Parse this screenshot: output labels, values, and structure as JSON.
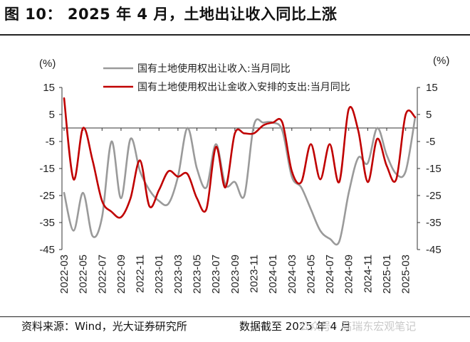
{
  "header": {
    "title": "图 10： 2025 年 4 月，土地出让收入同比上涨"
  },
  "footer": {
    "source": "资料来源：Wind，光大证券研究所",
    "cutoff": "数据截至 2025 年 4 月",
    "watermark": "公众号 · 高瑞东宏观笔记"
  },
  "chart_data": {
    "type": "line",
    "unit_left": "(%)",
    "unit_right": "(%)",
    "ylim": [
      -45,
      15
    ],
    "yticks": [
      15,
      5,
      -5,
      -15,
      -25,
      -35,
      -45
    ],
    "grid": false,
    "legend_position": "top",
    "x": [
      "2022-03",
      "2022-04",
      "2022-05",
      "2022-06",
      "2022-07",
      "2022-08",
      "2022-09",
      "2022-10",
      "2022-11",
      "2022-12",
      "2023-01",
      "2023-02",
      "2023-03",
      "2023-04",
      "2023-05",
      "2023-06",
      "2023-07",
      "2023-08",
      "2023-09",
      "2023-10",
      "2023-11",
      "2023-12",
      "2024-01",
      "2024-02",
      "2024-03",
      "2024-04",
      "2024-05",
      "2024-06",
      "2024-07",
      "2024-08",
      "2024-09",
      "2024-10",
      "2024-11",
      "2024-12",
      "2025-01",
      "2025-02",
      "2025-03",
      "2025-04"
    ],
    "xtick_labels": [
      "2022-03",
      "2022-05",
      "2022-07",
      "2022-09",
      "2022-11",
      "2023-01",
      "2023-03",
      "2023-05",
      "2023-07",
      "2023-09",
      "2023-11",
      "2024-01",
      "2024-03",
      "2024-05",
      "2024-07",
      "2024-09",
      "2024-11",
      "2025-01",
      "2025-03"
    ],
    "series": [
      {
        "name": "国有土地使用权出让收入:当月同比",
        "color": "#9a9a9a",
        "values": [
          -24,
          -38,
          -24,
          -40,
          -33,
          -5,
          -26,
          -4,
          -16,
          -23,
          -27,
          -28,
          -18,
          0,
          -15,
          -22,
          -6,
          -21,
          -20,
          -25,
          1,
          2,
          2,
          -1,
          -18,
          -22,
          -30,
          -38,
          -41,
          -42,
          -24,
          -11,
          -13,
          0,
          -10,
          -17,
          -16,
          4
        ]
      },
      {
        "name": "国有土地使用权出让金收入安排的支出:当月同比",
        "color": "#c00000",
        "values": [
          11,
          -19,
          0,
          -12,
          -27,
          -31,
          -33,
          -26,
          -12,
          -29,
          -23,
          -16,
          -18,
          -17,
          -26,
          -30,
          -7,
          -22,
          -2,
          -2,
          -2,
          1,
          2,
          2,
          -16,
          -20,
          -6,
          -19,
          -6,
          -20,
          7,
          -1,
          -20,
          -4,
          -14,
          -19,
          5,
          4
        ]
      }
    ]
  }
}
